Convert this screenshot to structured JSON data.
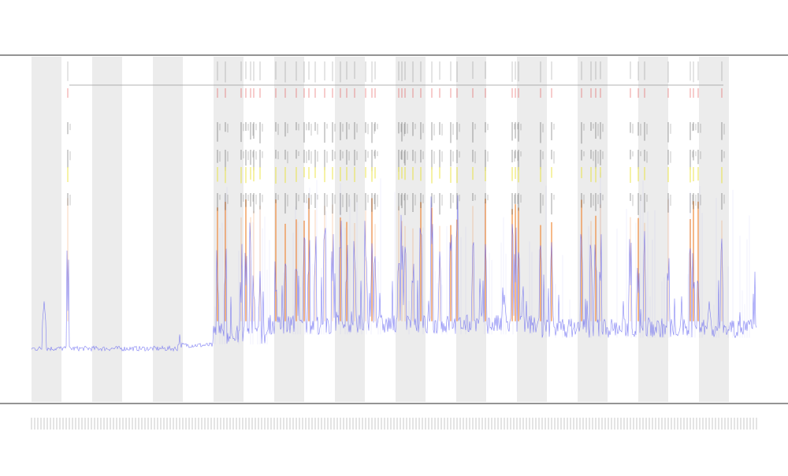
{
  "chart_data": {
    "type": "line",
    "title": "",
    "subtitle": "",
    "xlabel": "",
    "ylabel": "",
    "ylim": [
      0,
      100
    ],
    "grid": false,
    "legend_placement": "top-left",
    "colors": {
      "shade_band": "#ececec",
      "axis": "#555555",
      "baseline_series": "#5a5af0",
      "orange_events": "#f08a3a",
      "yellow_events": "#e8e020",
      "black_events": "#222222",
      "red_events": "#e03030",
      "reference_line": "#888888"
    },
    "n_points": 920,
    "shaded_bands": [
      [
        0,
        38
      ],
      [
        77,
        115
      ],
      [
        154,
        192
      ],
      [
        231,
        269
      ],
      [
        308,
        346
      ],
      [
        385,
        423
      ],
      [
        462,
        500
      ],
      [
        539,
        577
      ],
      [
        616,
        654
      ],
      [
        693,
        731
      ],
      [
        770,
        808
      ],
      [
        847,
        885
      ]
    ],
    "event_columns": [
      46,
      236,
      246,
      266,
      272,
      278,
      282,
      290,
      310,
      322,
      336,
      346,
      352,
      360,
      372,
      382,
      392,
      400,
      410,
      424,
      432,
      436,
      466,
      470,
      474,
      484,
      494,
      508,
      518,
      532,
      540,
      560,
      576,
      610,
      614,
      618,
      646,
      660,
      698,
      710,
      716,
      722,
      760,
      770,
      778,
      808,
      836,
      840,
      846,
      876
    ],
    "baseline": {
      "segments": [
        {
          "from": 0,
          "to": 185,
          "level": 13
        },
        {
          "from": 186,
          "to": 230,
          "level": 14
        },
        {
          "from": 231,
          "to": 300,
          "level": 15
        },
        {
          "from": 301,
          "to": 640,
          "level": 18
        },
        {
          "from": 641,
          "to": 920,
          "level": 17
        }
      ],
      "spikes": [
        [
          16,
          28
        ],
        [
          188,
          18
        ],
        [
          470,
          26
        ],
        [
          600,
          30
        ],
        [
          860,
          28
        ]
      ]
    }
  }
}
